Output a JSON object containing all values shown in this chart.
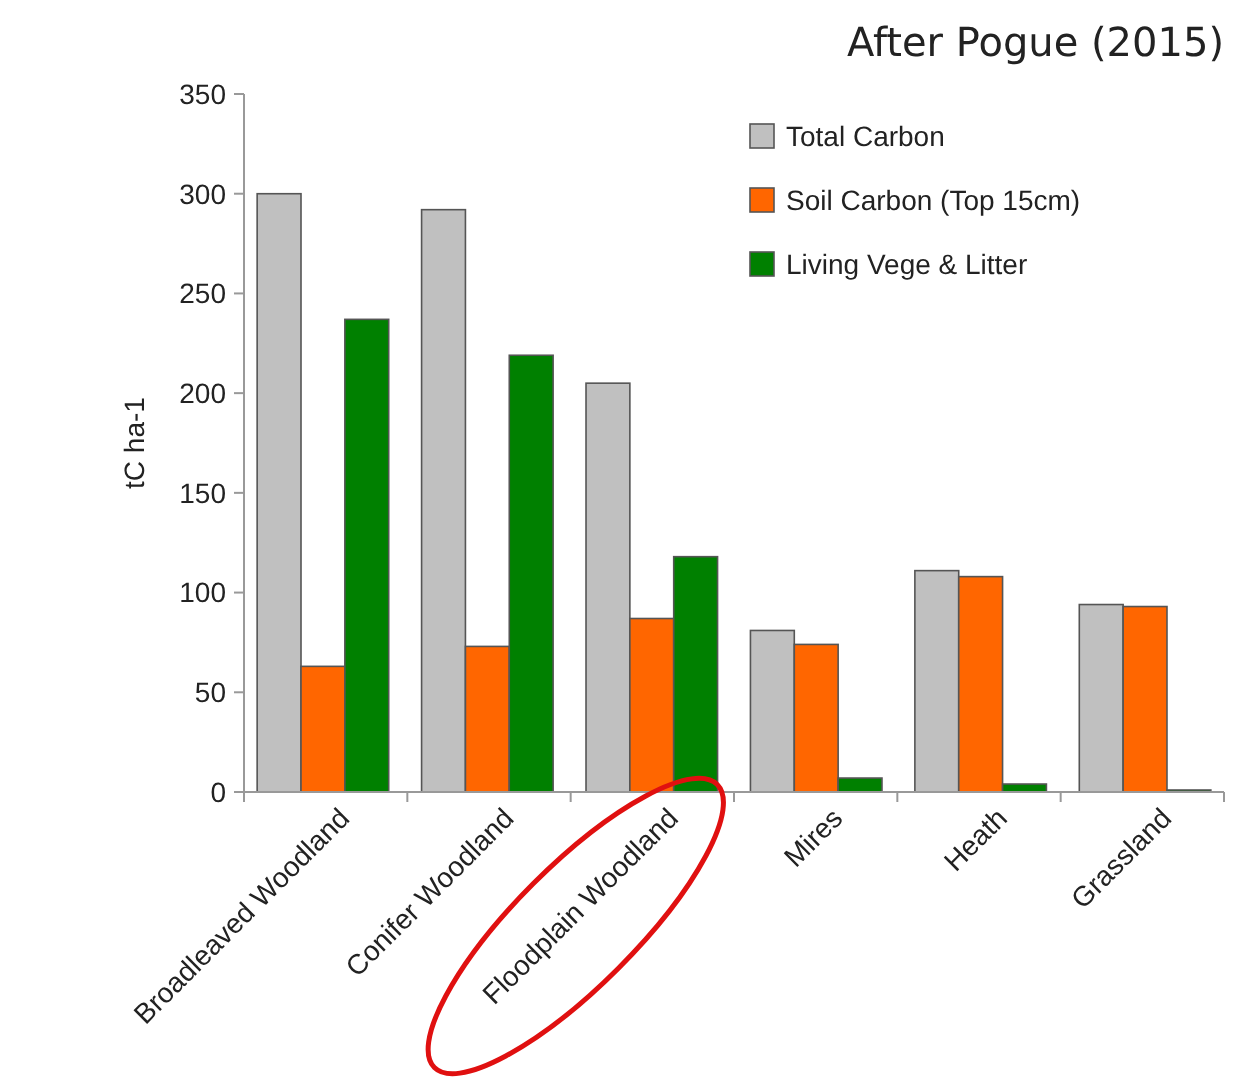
{
  "chart_data": {
    "type": "bar",
    "ylabel": "tC ha-1",
    "annotations": [
      "After Pogue (2015)"
    ],
    "categories": [
      "Broadleaved Woodland",
      "Conifer Woodland",
      "Floodplain Woodland",
      "Mires",
      "Heath",
      "Grassland"
    ],
    "series": [
      {
        "name": "Total Carbon",
        "color": "#c0c0c0",
        "values": [
          300,
          292,
          205,
          81,
          111,
          94
        ]
      },
      {
        "name": "Soil Carbon (Top 15cm)",
        "color": "#ff6600",
        "values": [
          63,
          73,
          87,
          74,
          108,
          93
        ]
      },
      {
        "name": "Living Vege & Litter",
        "color": "#008000",
        "values": [
          237,
          219,
          118,
          7,
          4,
          1
        ]
      }
    ],
    "ylim": [
      0,
      350
    ],
    "yticks": [
      0,
      50,
      100,
      150,
      200,
      250,
      300,
      350
    ],
    "grid": false,
    "legend": "top right"
  }
}
